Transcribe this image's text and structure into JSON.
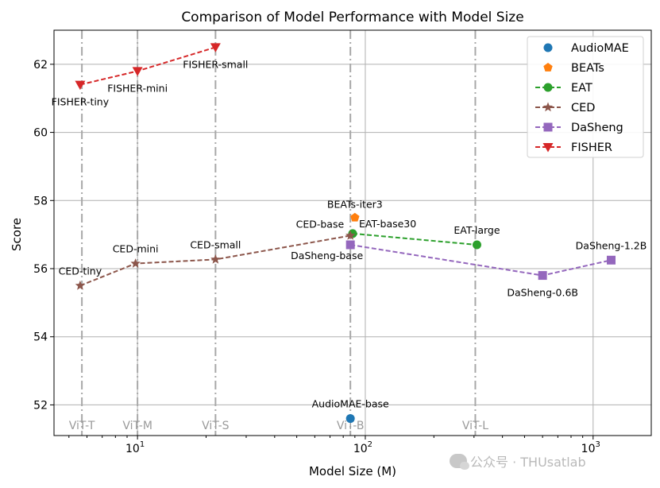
{
  "chart_data": {
    "type": "line",
    "title": "Comparison of Model Performance with Model Size",
    "xlabel": "Model Size (M)",
    "ylabel": "Score",
    "xscale": "log",
    "xlim": [
      4.3,
      1800
    ],
    "ylim": [
      51.1,
      63.0
    ],
    "grid": true,
    "legend_position": "top-right",
    "x_ticks": [
      {
        "value": 10,
        "base": "10",
        "exp": "1"
      },
      {
        "value": 100,
        "base": "10",
        "exp": "2"
      },
      {
        "value": 1000,
        "base": "10",
        "exp": "3"
      }
    ],
    "y_ticks": [
      52,
      54,
      56,
      58,
      60,
      62
    ],
    "reference_lines": [
      {
        "x": 5.7,
        "label": "ViT-T"
      },
      {
        "x": 10,
        "label": "ViT-M"
      },
      {
        "x": 22,
        "label": "ViT-S"
      },
      {
        "x": 86,
        "label": "ViT-B"
      },
      {
        "x": 304,
        "label": "ViT-L"
      }
    ],
    "series": [
      {
        "name": "AudioMAE",
        "color": "#1f77b4",
        "marker": "circle",
        "line": "none",
        "points": [
          {
            "x": 86,
            "y": 51.6,
            "label": "AudioMAE-base",
            "anchor": "middle",
            "dy": -14
          }
        ]
      },
      {
        "name": "BEATs",
        "color": "#ff7f0e",
        "marker": "pentagon",
        "line": "none",
        "points": [
          {
            "x": 90,
            "y": 57.5,
            "label": "BEATs-iter3",
            "anchor": "middle",
            "dy": -12
          }
        ]
      },
      {
        "name": "EAT",
        "color": "#2ca02c",
        "marker": "circle",
        "line": "dashed",
        "points": [
          {
            "x": 88,
            "y": 57.03,
            "label": "EAT-base30",
            "anchor": "start",
            "dx": 8,
            "dy": -8
          },
          {
            "x": 309,
            "y": 56.7,
            "label": "EAT-large",
            "anchor": "middle",
            "dy": -14
          }
        ]
      },
      {
        "name": "CED",
        "color": "#8c564b",
        "marker": "star",
        "line": "dashed",
        "points": [
          {
            "x": 5.6,
            "y": 55.5,
            "label": "CED-tiny",
            "anchor": "middle",
            "dy": -14
          },
          {
            "x": 9.8,
            "y": 56.15,
            "label": "CED-mini",
            "anchor": "middle",
            "dy": -14
          },
          {
            "x": 22,
            "y": 56.27,
            "label": "CED-small",
            "anchor": "middle",
            "dy": -14
          },
          {
            "x": 86,
            "y": 56.97,
            "label": "CED-base",
            "anchor": "end",
            "dx": -8,
            "dy": -10
          }
        ]
      },
      {
        "name": "DaSheng",
        "color": "#9467bd",
        "marker": "square",
        "line": "dashed",
        "points": [
          {
            "x": 86,
            "y": 56.7,
            "label": "DaSheng-base",
            "anchor": "end",
            "dx": 16,
            "dy": 18
          },
          {
            "x": 600,
            "y": 55.8,
            "label": "DaSheng-0.6B",
            "anchor": "middle",
            "dy": 26
          },
          {
            "x": 1200,
            "y": 56.25,
            "label": "DaSheng-1.2B",
            "anchor": "middle",
            "dy": -14
          }
        ]
      },
      {
        "name": "FISHER",
        "color": "#d62728",
        "marker": "triangle-down",
        "line": "dashed",
        "points": [
          {
            "x": 5.6,
            "y": 61.4,
            "label": "FISHER-tiny",
            "anchor": "middle",
            "dy": 26
          },
          {
            "x": 10,
            "y": 61.8,
            "label": "FISHER-mini",
            "anchor": "middle",
            "dy": 26
          },
          {
            "x": 22,
            "y": 62.5,
            "label": "FISHER-small",
            "anchor": "middle",
            "dy": 26
          }
        ]
      }
    ]
  },
  "watermark": "公众号 · THUsatlab"
}
